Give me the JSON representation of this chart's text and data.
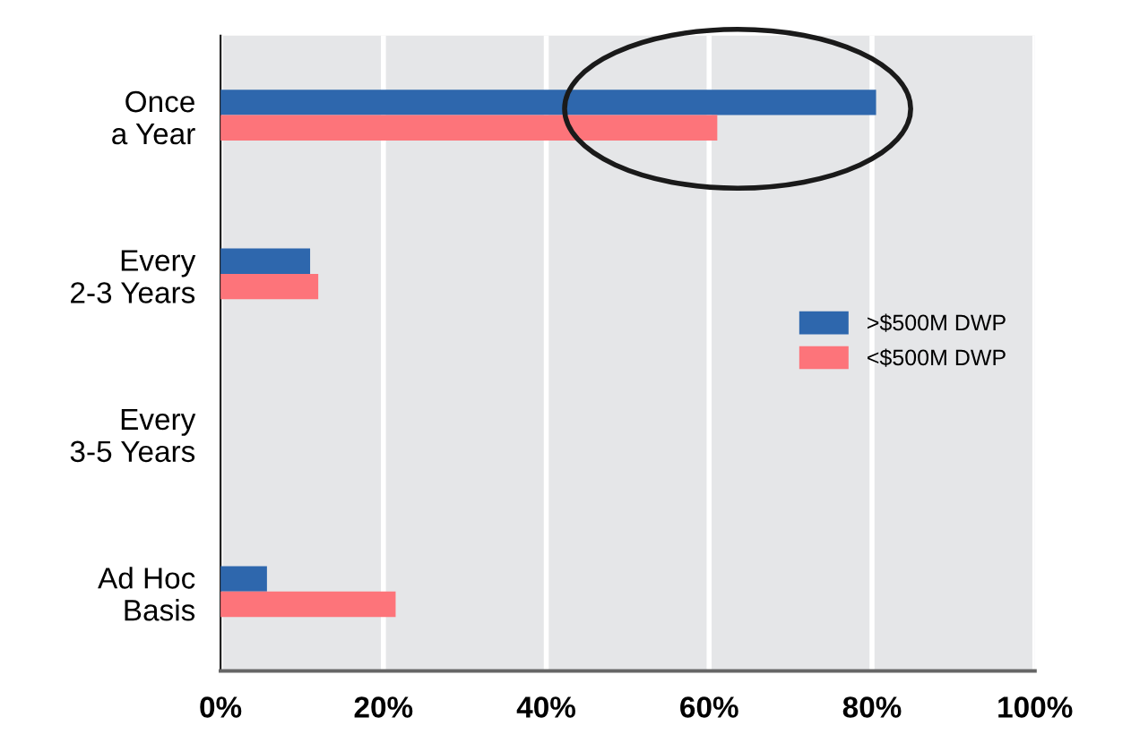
{
  "chart_data": {
    "type": "bar",
    "orientation": "horizontal",
    "categories": [
      "Once\na Year",
      "Every\n2-3 Years",
      "Every\n3-5 Years",
      "Ad Hoc\nBasis"
    ],
    "series": [
      {
        "name": ">$500M DWP",
        "color": "#2e67ad",
        "values": [
          80.5,
          11,
          0,
          5.7
        ]
      },
      {
        "name": "<$500M DWP",
        "color": "#fd747a",
        "values": [
          61,
          12,
          0,
          21.5
        ]
      }
    ],
    "xlim": [
      0,
      100
    ],
    "xticks": [
      {
        "value": 0,
        "label": "0%"
      },
      {
        "value": 20,
        "label": "20%"
      },
      {
        "value": 40,
        "label": "40%"
      },
      {
        "value": 60,
        "label": "60%"
      },
      {
        "value": 80,
        "label": "80%"
      },
      {
        "value": 100,
        "label": "100%"
      }
    ],
    "grid": "x",
    "legend": "right"
  }
}
